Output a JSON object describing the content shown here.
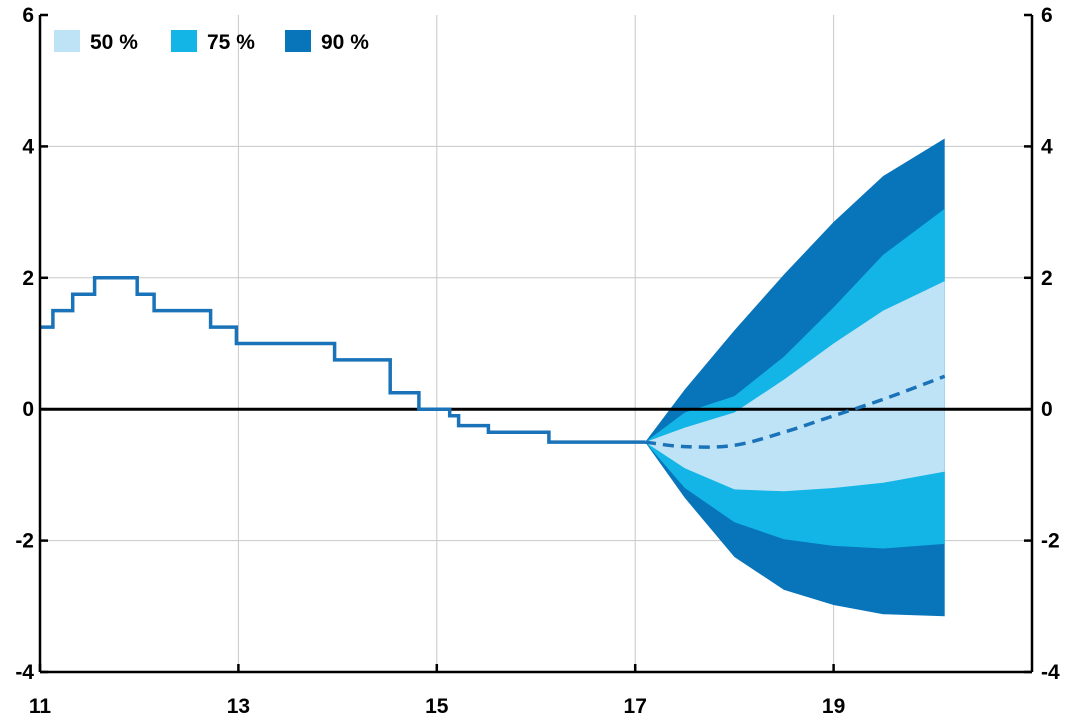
{
  "chart_data": {
    "type": "area",
    "title": "",
    "xlabel": "",
    "ylabel": "",
    "xlim": [
      11,
      21
    ],
    "ylim": [
      -4,
      6
    ],
    "grid": true,
    "legend_position": "top-left",
    "x_ticks": [
      {
        "value": 11,
        "label": "11"
      },
      {
        "value": 13,
        "label": "13"
      },
      {
        "value": 15,
        "label": "15"
      },
      {
        "value": 17,
        "label": "17"
      },
      {
        "value": 19,
        "label": "19"
      }
    ],
    "y_ticks": [
      {
        "value": 6,
        "label": "6"
      },
      {
        "value": 4,
        "label": "4"
      },
      {
        "value": 2,
        "label": "2"
      },
      {
        "value": 0,
        "label": "0"
      },
      {
        "value": -2,
        "label": "-2"
      },
      {
        "value": -4,
        "label": "-4"
      }
    ],
    "colors": {
      "band_50": "#bfe3f6",
      "band_75": "#12b5e6",
      "band_90": "#0874ba",
      "line": "#1a73b8",
      "axis": "#000000",
      "grid": "#c8c8c8"
    },
    "legend": [
      {
        "label": "50 %",
        "color": "#bfe3f6"
      },
      {
        "label": "75 %",
        "color": "#12b5e6"
      },
      {
        "label": "90 %",
        "color": "#0874ba"
      }
    ],
    "history": [
      [
        11.0,
        1.25
      ],
      [
        11.13,
        1.25
      ],
      [
        11.13,
        1.5
      ],
      [
        11.33,
        1.5
      ],
      [
        11.33,
        1.75
      ],
      [
        11.55,
        1.75
      ],
      [
        11.55,
        2.0
      ],
      [
        11.98,
        2.0
      ],
      [
        11.98,
        1.75
      ],
      [
        12.15,
        1.75
      ],
      [
        12.15,
        1.5
      ],
      [
        12.72,
        1.5
      ],
      [
        12.72,
        1.25
      ],
      [
        12.98,
        1.25
      ],
      [
        12.98,
        1.0
      ],
      [
        13.97,
        1.0
      ],
      [
        13.97,
        0.75
      ],
      [
        14.53,
        0.75
      ],
      [
        14.53,
        0.25
      ],
      [
        14.82,
        0.25
      ],
      [
        14.82,
        0.0
      ],
      [
        15.13,
        0.0
      ],
      [
        15.13,
        -0.1
      ],
      [
        15.22,
        -0.1
      ],
      [
        15.22,
        -0.25
      ],
      [
        15.52,
        -0.25
      ],
      [
        15.52,
        -0.35
      ],
      [
        16.13,
        -0.35
      ],
      [
        16.13,
        -0.5
      ],
      [
        17.1,
        -0.5
      ]
    ],
    "forecast_median": [
      [
        17.1,
        -0.5
      ],
      [
        17.5,
        -0.57
      ],
      [
        18.0,
        -0.55
      ],
      [
        18.5,
        -0.35
      ],
      [
        19.0,
        -0.1
      ],
      [
        19.5,
        0.15
      ],
      [
        20.12,
        0.5
      ]
    ],
    "bands": {
      "x": [
        17.1,
        17.5,
        18.0,
        18.5,
        19.0,
        19.5,
        20.12
      ],
      "upper_90": [
        -0.5,
        0.3,
        1.2,
        2.05,
        2.85,
        3.55,
        4.12
      ],
      "upper_75": [
        -0.5,
        -0.05,
        0.2,
        0.8,
        1.55,
        2.35,
        3.05
      ],
      "upper_50": [
        -0.5,
        -0.28,
        -0.05,
        0.45,
        1.0,
        1.5,
        1.95
      ],
      "lower_50": [
        -0.5,
        -0.9,
        -1.22,
        -1.25,
        -1.2,
        -1.12,
        -0.95
      ],
      "lower_75": [
        -0.5,
        -1.2,
        -1.72,
        -1.98,
        -2.08,
        -2.12,
        -2.05
      ],
      "lower_90": [
        -0.5,
        -1.35,
        -2.25,
        -2.75,
        -2.98,
        -3.12,
        -3.15
      ]
    }
  }
}
